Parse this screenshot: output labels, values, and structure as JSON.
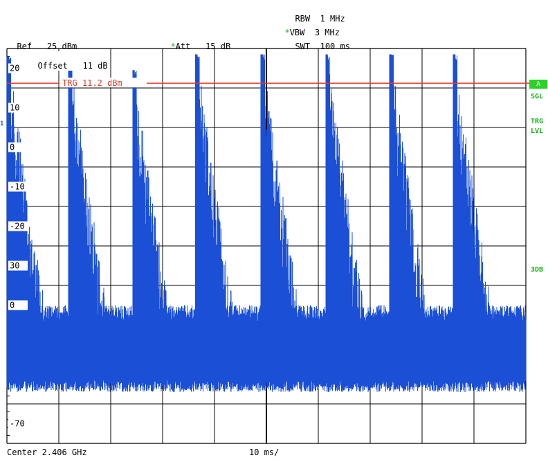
{
  "header": {
    "rbw_label": "RBW",
    "rbw_value": "1 MHz",
    "vbw_star": "*",
    "vbw_label": "VBW",
    "vbw_value": "3 MHz",
    "swt_label": "SWT",
    "swt_value": "100 ms",
    "ref_label": "Ref",
    "ref_value": "25 dBm",
    "att_star": "*",
    "att_label": "Att",
    "att_value": "15 dB"
  },
  "offset": {
    "label": "Offset",
    "value": "11 dB"
  },
  "side": {
    "a_box": "A",
    "sgl": "SGL",
    "trg_line1": "TRG",
    "trg_line2": "LVL",
    "db3": "3DB",
    "left_marker": "1"
  },
  "footer": {
    "center": "Center 2.406 GHz",
    "scale": "10 ms/"
  },
  "colors": {
    "trace": "#1a4fd6",
    "trigger": "#e03a2a",
    "grid": "#000000",
    "status": "#18b818"
  },
  "chart_data": {
    "type": "line",
    "xlabel": "",
    "ylabel": "",
    "yticks": [
      "20",
      "10",
      "0",
      "-10",
      "-20",
      "30",
      "0",
      "",
      "",
      "-70"
    ],
    "trigger": {
      "label": "TRG 11.2 dBm",
      "level_db": 11.2
    },
    "ylim": [
      -80,
      20
    ],
    "x_divisions": 10,
    "time_per_div_ms": 10,
    "noise_floor_db": {
      "low": -64,
      "high": -45
    },
    "pulses": [
      {
        "t_ms": 0.3,
        "peak_db": 18.0
      },
      {
        "t_ms": 12.1,
        "peak_db": 18.5
      },
      {
        "t_ms": 24.5,
        "peak_db": 14.5
      },
      {
        "t_ms": 36.6,
        "peak_db": 18.5
      },
      {
        "t_ms": 49.2,
        "peak_db": 18.5
      },
      {
        "t_ms": 61.7,
        "peak_db": 18.5
      },
      {
        "t_ms": 74.0,
        "peak_db": 18.5
      },
      {
        "t_ms": 86.3,
        "peak_db": 18.5
      }
    ]
  }
}
